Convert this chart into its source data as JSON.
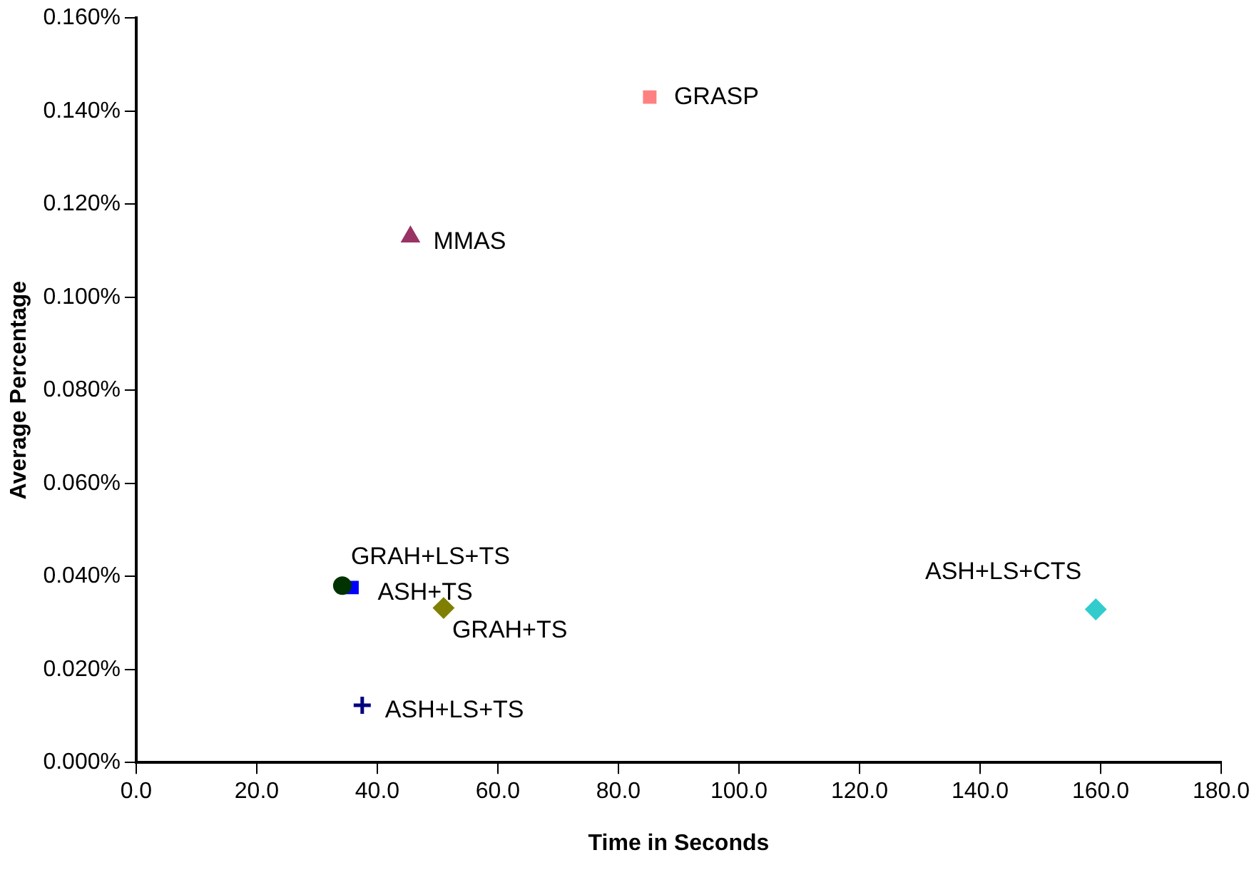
{
  "chart_data": {
    "type": "scatter",
    "xlabel": "Time in Seconds",
    "ylabel": "Average Percentage",
    "xlim": [
      0,
      180
    ],
    "xticks": [
      {
        "value": 0,
        "label": "0.0"
      },
      {
        "value": 20,
        "label": "20.0"
      },
      {
        "value": 40,
        "label": "40.0"
      },
      {
        "value": 60,
        "label": "60.0"
      },
      {
        "value": 80,
        "label": "80.0"
      },
      {
        "value": 100,
        "label": "100.0"
      },
      {
        "value": 120,
        "label": "120.0"
      },
      {
        "value": 140,
        "label": "140.0"
      },
      {
        "value": 160,
        "label": "160.0"
      },
      {
        "value": 180,
        "label": "180.0"
      }
    ],
    "ylim": [
      0,
      0.16
    ],
    "yticks": [
      {
        "value": 0,
        "label": "0.000%"
      },
      {
        "value": 0.02,
        "label": "0.020%"
      },
      {
        "value": 0.04,
        "label": "0.040%"
      },
      {
        "value": 0.06,
        "label": "0.060%"
      },
      {
        "value": 0.08,
        "label": "0.080%"
      },
      {
        "value": 0.1,
        "label": "0.100%"
      },
      {
        "value": 0.12,
        "label": "0.120%"
      },
      {
        "value": 0.14,
        "label": "0.140%"
      },
      {
        "value": 0.16,
        "label": "0.160%"
      }
    ],
    "grid": false,
    "legend": false,
    "series": [
      {
        "name": "GRASP",
        "color": "#ff8080",
        "marker": "square",
        "x": [
          85.2
        ],
        "values": [
          0.143
        ]
      },
      {
        "name": "MMAS",
        "color": "#993366",
        "marker": "triangle",
        "x": [
          45.5
        ],
        "values": [
          0.113
        ]
      },
      {
        "name": "GRAH+LS+TS",
        "color": "#003300",
        "marker": "circle",
        "x": [
          34.2
        ],
        "values": [
          0.038
        ]
      },
      {
        "name": "ASH+TS",
        "color": "#0000ff",
        "marker": "square",
        "x": [
          35.8
        ],
        "values": [
          0.0376
        ]
      },
      {
        "name": "GRAH+TS",
        "color": "#808000",
        "marker": "diamond",
        "x": [
          51.0
        ],
        "values": [
          0.0332
        ]
      },
      {
        "name": "ASH+LS+TS",
        "color": "#000080",
        "marker": "cross",
        "x": [
          37.5
        ],
        "values": [
          0.0123
        ]
      },
      {
        "name": "ASH+LS+CTS",
        "color": "#33cccc",
        "marker": "diamond",
        "x": [
          159.2
        ],
        "values": [
          0.0329
        ]
      }
    ]
  }
}
